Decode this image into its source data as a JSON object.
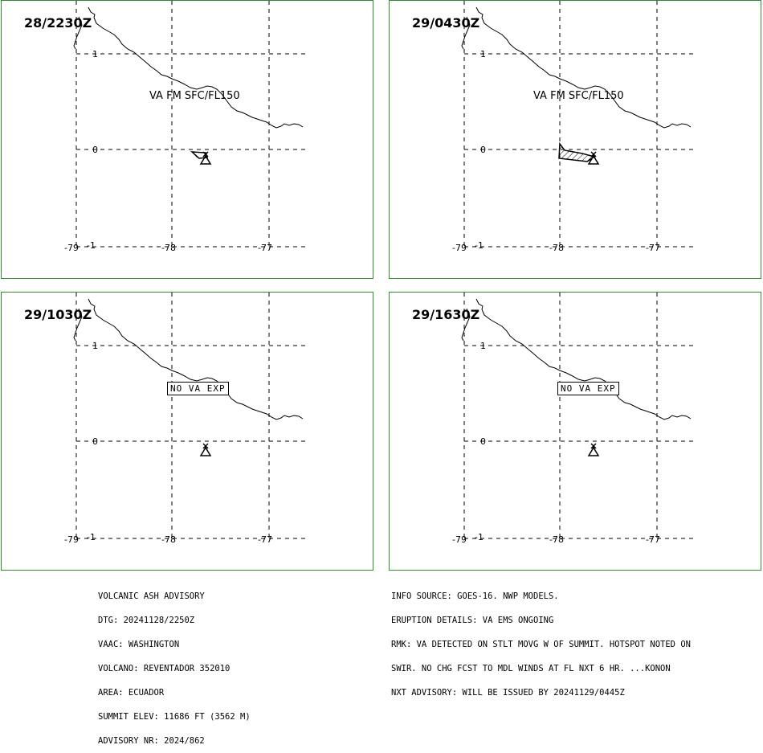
{
  "panels": [
    {
      "time": "28/2230Z",
      "va_text": "VA FM SFC/FL150",
      "no_va_text": ""
    },
    {
      "time": "29/0430Z",
      "va_text": "VA FM SFC/FL150",
      "no_va_text": ""
    },
    {
      "time": "29/1030Z",
      "va_text": "",
      "no_va_text": "NO VA EXP"
    },
    {
      "time": "29/1630Z",
      "va_text": "",
      "no_va_text": "NO VA EXP"
    }
  ],
  "lat_labels": [
    "1",
    "0",
    "-1"
  ],
  "lon_labels": [
    "-79",
    "-78",
    "-77"
  ],
  "colors": {
    "panel_border": "#2e8b2e",
    "ink": "#000000"
  },
  "advisory_left": [
    "VOLCANIC ASH ADVISORY",
    "DTG: 20241128/2250Z",
    "VAAC: WASHINGTON",
    "VOLCANO: REVENTADOR 352010",
    "AREA: ECUADOR",
    "SUMMIT ELEV: 11686 FT (3562 M)",
    "ADVISORY NR: 2024/862"
  ],
  "advisory_right": [
    "INFO SOURCE: GOES-16. NWP MODELS.",
    "ERUPTION DETAILS: VA EMS ONGOING",
    "RMK: VA DETECTED ON STLT MOVG W OF SUMMIT. HOTSPOT NOTED ON",
    "SWIR. NO CHG FCST TO MDL WINDS AT FL NXT 6 HR. ...KONON",
    "NXT ADVISORY: WILL BE ISSUED BY 20241129/0445Z"
  ]
}
